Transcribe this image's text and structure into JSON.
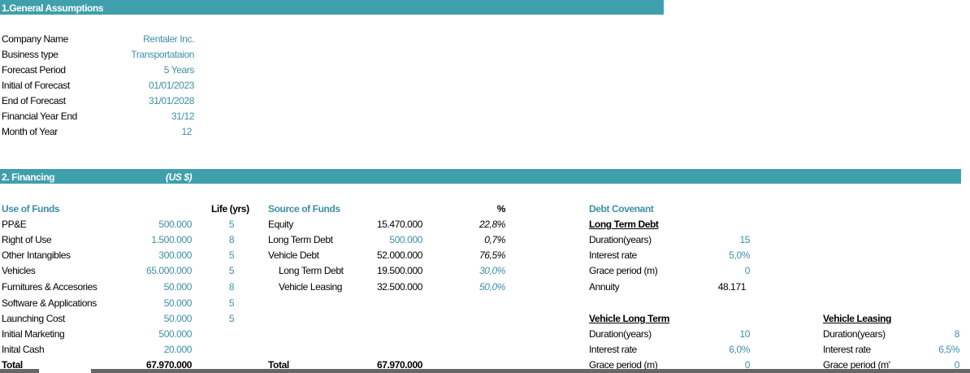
{
  "general": {
    "band_title": "1.General Assumptions",
    "rows": [
      {
        "label": "Company Name",
        "value": "Rentaler Inc."
      },
      {
        "label": "Business type",
        "value": "Transportataion"
      },
      {
        "label": "Forecast Period",
        "value": "5 Years"
      },
      {
        "label": "Initial of Forecast",
        "value": "01/01/2023"
      },
      {
        "label": "End of Forecast",
        "value": "31/01/2028"
      },
      {
        "label": "Financial Year End",
        "value": "31/12"
      },
      {
        "label": "Month of Year",
        "value": "12"
      }
    ]
  },
  "financing": {
    "band_title": "2. Financing",
    "band_currency": "(US $)",
    "use_of_funds": {
      "header": "Use of Funds",
      "life_header": "Life (yrs)",
      "rows": [
        {
          "label": "PP&E",
          "value": "500.000",
          "life": "5"
        },
        {
          "label": "Right of Use",
          "value": "1.500.000",
          "life": "8"
        },
        {
          "label": "Other Intangibles",
          "value": "300.000",
          "life": "5"
        },
        {
          "label": "Vehicles",
          "value": "65.000.000",
          "life": "5"
        },
        {
          "label": "Furnitures & Accesories",
          "value": "50.000",
          "life": "8"
        },
        {
          "label": "Software & Applications",
          "value": "50.000",
          "life": "5"
        },
        {
          "label": "Launching Cost",
          "value": "50.000",
          "life": "5"
        },
        {
          "label": "Initial Marketing",
          "value": "500.000",
          "life": ""
        },
        {
          "label": "Inital Cash",
          "value": "20.000",
          "life": ""
        }
      ],
      "total_label": "Total",
      "total_value": "67.970.000"
    },
    "source_of_funds": {
      "header": "Source of Funds",
      "pct_header": "%",
      "rows": [
        {
          "label": "Equity",
          "value": "15.470.000",
          "pct": "22,8%"
        },
        {
          "label": "Long Term Debt",
          "value": "500.000",
          "pct": "0,7%"
        },
        {
          "label": "Vehicle Debt",
          "value": "52.000.000",
          "pct": "76,5%"
        },
        {
          "label": "Long Term Debt",
          "value": "19.500.000",
          "pct": "30,0%"
        },
        {
          "label": "Vehicle Leasing",
          "value": "32.500.000",
          "pct": "50,0%"
        }
      ],
      "total_label": "Total",
      "total_value": "67.970.000"
    },
    "debt_covenant": {
      "header": "Debt Covenant",
      "long_term": {
        "title": "Long Term Debt",
        "rows": [
          {
            "label": "Duration(years)",
            "value": "15"
          },
          {
            "label": "Interest rate",
            "value": "5,0%"
          },
          {
            "label": "Grace period (m)",
            "value": "0"
          },
          {
            "label": "Annuity",
            "value": "48.171"
          }
        ]
      },
      "vehicle_long_term": {
        "title": "Vehicle Long Term",
        "rows": [
          {
            "label": "Duration(years)",
            "value": "10"
          },
          {
            "label": "Interest rate",
            "value": "6,0%"
          },
          {
            "label": "Grace period (m)",
            "value": "0"
          }
        ]
      },
      "vehicle_leasing": {
        "title": "Vehicle Leasing",
        "rows": [
          {
            "label": "Duration(years)",
            "value": "8"
          },
          {
            "label": "Interest rate",
            "value": "6,5%"
          },
          {
            "label": "Grace period (m'",
            "value": "0"
          }
        ]
      }
    }
  }
}
